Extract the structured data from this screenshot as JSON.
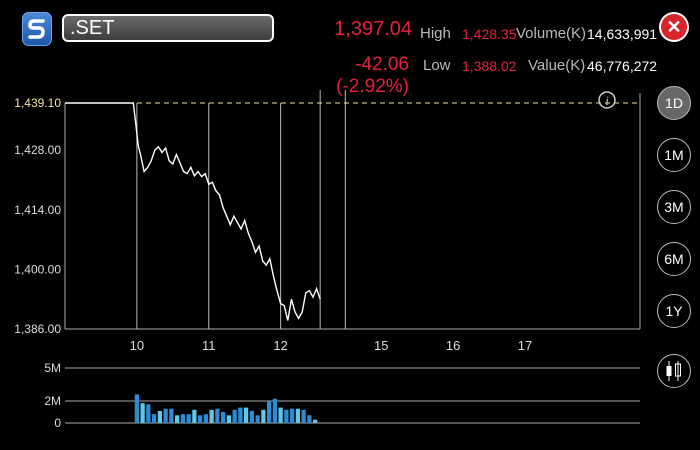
{
  "header": {
    "symbol": ".SET",
    "price": "1,397.04",
    "change": "-42.06 (-2.92%)",
    "high_label": "High",
    "high_value": "1,428.35",
    "low_label": "Low",
    "low_value": "1,388.02",
    "volume_label": "Volume(K)",
    "volume_value": "14,633,991",
    "value_label": "Value(K)",
    "value_value": "46,776,272",
    "close_symbol": "✕"
  },
  "timeframes": [
    {
      "label": "1D",
      "active": true
    },
    {
      "label": "1M",
      "active": false
    },
    {
      "label": "3M",
      "active": false
    },
    {
      "label": "6M",
      "active": false
    },
    {
      "label": "1Y",
      "active": false
    }
  ],
  "colors": {
    "accent_red": "#e3213b",
    "reference_line": "#f2e6a0",
    "price_line": "#ffffff",
    "volume_bar": "#2e8bd6",
    "volume_bar_light": "#5fc8e8"
  },
  "chart_data": [
    {
      "type": "line",
      "title": "",
      "reference_label": "1,439.10",
      "y_ticks": [
        "1,428.00",
        "1,414.00",
        "1,400.00",
        "1,386.00"
      ],
      "x_ticks": [
        "10",
        "11",
        "12",
        "15",
        "16",
        "17"
      ],
      "ylim": [
        1386,
        1439.1
      ],
      "xlim": [
        9.0,
        17.0
      ],
      "grid": false,
      "series": [
        {
          "x": [
            9.0,
            9.33,
            9.95,
            9.98,
            10.02,
            10.05,
            10.1,
            10.15,
            10.2,
            10.25,
            10.3,
            10.35,
            10.4,
            10.45,
            10.5,
            10.55,
            10.6,
            10.65,
            10.7,
            10.75,
            10.8,
            10.85,
            10.9,
            10.95,
            11.0,
            11.05,
            11.1,
            11.15,
            11.2,
            11.25,
            11.3,
            11.35,
            11.4,
            11.45,
            11.5,
            11.55,
            11.6,
            11.65,
            11.7,
            11.75,
            11.8,
            11.85,
            11.9,
            11.95,
            12.0,
            12.05,
            12.1,
            12.15,
            12.2,
            12.25,
            12.3,
            12.35,
            12.4,
            12.45,
            12.5,
            12.55
          ],
          "y": [
            1439.1,
            1439.1,
            1439.1,
            1435.0,
            1429.0,
            1427.0,
            1423.0,
            1424.0,
            1425.5,
            1428.0,
            1428.8,
            1427.5,
            1428.5,
            1425.5,
            1424.8,
            1427.0,
            1425.0,
            1423.0,
            1422.5,
            1424.0,
            1422.0,
            1423.0,
            1421.8,
            1422.5,
            1420.0,
            1420.5,
            1418.5,
            1417.5,
            1414.5,
            1412.5,
            1410.5,
            1412.5,
            1411.0,
            1409.5,
            1411.5,
            1408.5,
            1406.5,
            1404.0,
            1405.5,
            1402.0,
            1401.0,
            1402.5,
            1398.5,
            1395.0,
            1392.0,
            1391.5,
            1388.0,
            1393.0,
            1390.0,
            1388.5,
            1390.0,
            1394.5,
            1395.0,
            1393.5,
            1395.5,
            1393.0
          ]
        }
      ]
    },
    {
      "type": "bar",
      "title": "",
      "y_ticks": [
        "5M",
        "2M",
        "0"
      ],
      "ylim": [
        0,
        5
      ],
      "xlim": [
        9.0,
        17.0
      ],
      "series": [
        {
          "x": [
            10.0,
            10.08,
            10.16,
            10.24,
            10.32,
            10.4,
            10.48,
            10.56,
            10.64,
            10.72,
            10.8,
            10.88,
            10.96,
            11.04,
            11.12,
            11.2,
            11.28,
            11.36,
            11.44,
            11.52,
            11.6,
            11.68,
            11.76,
            11.84,
            11.92,
            12.0,
            12.08,
            12.16,
            12.24,
            12.32,
            12.4,
            12.48
          ],
          "values": [
            2.6,
            1.8,
            1.7,
            0.8,
            1.1,
            1.3,
            1.3,
            0.7,
            0.8,
            0.8,
            1.2,
            0.7,
            0.8,
            1.2,
            1.3,
            1.0,
            0.7,
            1.2,
            1.4,
            1.4,
            1.1,
            0.7,
            1.2,
            2.0,
            2.2,
            1.4,
            1.2,
            1.3,
            1.3,
            1.2,
            0.7,
            0.3
          ]
        }
      ]
    }
  ]
}
